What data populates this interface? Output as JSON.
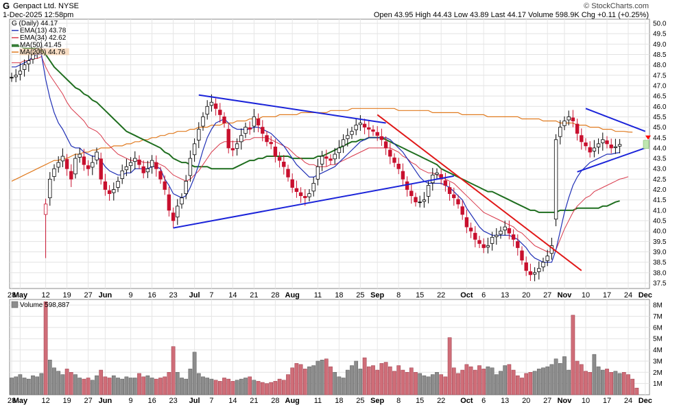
{
  "header": {
    "symbol": "G",
    "company": "Genpact Ltd.  NYSE",
    "date_time": "1-Dec-2025 12:58pm",
    "copyright": "© StockCharts.com",
    "open_label": "Open",
    "open": "43.95",
    "high_label": "High",
    "high": "44.43",
    "low_label": "Low",
    "low": "43.89",
    "last_label": "Last",
    "last": "44.17",
    "volume_label": "Volume",
    "volume": "598.9K",
    "chg_label": "Chg",
    "chg": "+0.11 (+0.25%)"
  },
  "colors": {
    "up": "#000000",
    "down": "#c8102e",
    "ema13": "#1f2fb5",
    "ema34": "#d8384a",
    "ma50": "#1f6e1f",
    "ma200": "#e07a1f",
    "trend_blue": "#1a23d9",
    "trend_red": "#e01818",
    "vol_up": "#8c8c8c",
    "vol_down": "#cf6d78"
  },
  "chart_data": [
    {
      "type": "candlestick",
      "title": "G (Daily) 44.17",
      "legend": [
        {
          "name": "G (Daily) 44.17",
          "color": "#000000"
        },
        {
          "name": "EMA(13) 43.78",
          "color": "#1f2fb5"
        },
        {
          "name": "EMA(34) 42.62",
          "color": "#d8384a"
        },
        {
          "name": "MA(50) 41.45",
          "color": "#1f6e1f"
        },
        {
          "name": "MA(200) 44.76",
          "color": "#e07a1f"
        }
      ],
      "legend_position": "top-left",
      "ylim": [
        37.5,
        50.0
      ],
      "y_ticks": [
        "50.0",
        "49.5",
        "49.0",
        "48.5",
        "48.0",
        "47.5",
        "47.0",
        "46.5",
        "46.0",
        "45.5",
        "45.0",
        "44.5",
        "44.0",
        "43.5",
        "43.0",
        "42.5",
        "42.0",
        "41.5",
        "41.0",
        "40.5",
        "40.0",
        "39.5",
        "39.0",
        "38.5",
        "38.0",
        "37.5"
      ],
      "x_labels": [
        {
          "i": 0,
          "label": "28"
        },
        {
          "i": 2,
          "label": "May"
        },
        {
          "i": 8,
          "label": "12"
        },
        {
          "i": 13,
          "label": "19"
        },
        {
          "i": 18,
          "label": "27"
        },
        {
          "i": 22,
          "label": "Jun"
        },
        {
          "i": 28,
          "label": "9"
        },
        {
          "i": 33,
          "label": "16"
        },
        {
          "i": 38,
          "label": "23"
        },
        {
          "i": 43,
          "label": "Jul"
        },
        {
          "i": 47,
          "label": "7"
        },
        {
          "i": 52,
          "label": "14"
        },
        {
          "i": 57,
          "label": "21"
        },
        {
          "i": 62,
          "label": "28"
        },
        {
          "i": 66,
          "label": "Aug"
        },
        {
          "i": 72,
          "label": "11"
        },
        {
          "i": 77,
          "label": "18"
        },
        {
          "i": 82,
          "label": "25"
        },
        {
          "i": 86,
          "label": "Sep"
        },
        {
          "i": 91,
          "label": "8"
        },
        {
          "i": 96,
          "label": "15"
        },
        {
          "i": 101,
          "label": "22"
        },
        {
          "i": 107,
          "label": "Oct"
        },
        {
          "i": 111,
          "label": "6"
        },
        {
          "i": 116,
          "label": "13"
        },
        {
          "i": 121,
          "label": "20"
        },
        {
          "i": 126,
          "label": "27"
        },
        {
          "i": 130,
          "label": "Nov"
        },
        {
          "i": 135,
          "label": "10"
        },
        {
          "i": 140,
          "label": "17"
        },
        {
          "i": 145,
          "label": "24"
        },
        {
          "i": 149,
          "label": "Dec"
        }
      ],
      "bold_x_labels": [
        "May",
        "Jun",
        "Jul",
        "Aug",
        "Sep",
        "Oct",
        "Nov",
        "Dec"
      ],
      "close": [
        47.4,
        47.5,
        47.7,
        48.0,
        48.2,
        48.5,
        48.8,
        48.9,
        41.3,
        42.5,
        43.0,
        43.3,
        43.6,
        43.0,
        42.5,
        43.5,
        43.7,
        43.2,
        43.0,
        43.3,
        43.8,
        42.5,
        42.0,
        41.8,
        42.0,
        42.4,
        42.9,
        43.1,
        43.3,
        43.5,
        43.2,
        42.8,
        43.0,
        43.4,
        43.0,
        42.5,
        42.0,
        41.0,
        40.5,
        41.2,
        41.6,
        42.4,
        43.5,
        44.2,
        44.9,
        45.5,
        46.0,
        46.2,
        45.9,
        45.6,
        45.2,
        44.0,
        43.9,
        44.2,
        44.6,
        45.0,
        44.9,
        45.5,
        45.1,
        44.7,
        44.3,
        44.2,
        43.6,
        43.4,
        43.1,
        42.6,
        42.1,
        41.9,
        41.7,
        41.6,
        41.8,
        42.3,
        43.1,
        43.6,
        43.5,
        43.4,
        43.7,
        44.0,
        44.4,
        44.6,
        44.8,
        45.1,
        45.2,
        45.0,
        44.9,
        44.8,
        44.6,
        44.4,
        44.0,
        43.6,
        43.3,
        43.0,
        42.5,
        42.0,
        41.7,
        41.4,
        41.4,
        41.5,
        42.2,
        42.7,
        42.8,
        42.5,
        42.2,
        41.8,
        41.6,
        41.3,
        40.8,
        40.2,
        40.0,
        39.6,
        39.4,
        39.2,
        39.3,
        39.7,
        39.8,
        40.0,
        40.2,
        39.9,
        39.6,
        39.2,
        38.6,
        38.1,
        37.9,
        38.0,
        38.2,
        38.5,
        38.8,
        39.3,
        44.4,
        45.0,
        45.3,
        45.5,
        45.3,
        44.7,
        44.3,
        44.1,
        43.8,
        44.0,
        44.2,
        44.4,
        44.2,
        44.0,
        44.06,
        44.17
      ],
      "ema13": [
        47.9,
        47.9,
        48.0,
        48.1,
        48.2,
        48.4,
        48.5,
        48.5,
        47.3,
        46.4,
        45.7,
        45.2,
        44.9,
        44.5,
        44.1,
        44.0,
        44.0,
        43.8,
        43.7,
        43.6,
        43.6,
        43.4,
        43.1,
        42.9,
        42.8,
        42.7,
        42.7,
        42.8,
        42.8,
        43.0,
        43.0,
        43.0,
        43.0,
        43.1,
        43.1,
        43.0,
        42.5,
        42.2,
        41.8,
        41.7,
        41.6,
        41.7,
        42.1,
        42.6,
        43.2,
        43.9,
        44.5,
        44.9,
        45.2,
        45.3,
        45.4,
        45.2,
        45.0,
        44.9,
        44.9,
        44.9,
        44.9,
        45.0,
        45.0,
        44.9,
        44.8,
        44.7,
        44.5,
        44.3,
        44.1,
        43.8,
        43.5,
        43.2,
        43.0,
        42.8,
        42.6,
        42.6,
        42.7,
        42.8,
        42.9,
        43.0,
        43.1,
        43.3,
        43.5,
        43.7,
        43.9,
        44.1,
        44.3,
        44.4,
        44.5,
        44.5,
        44.5,
        44.5,
        44.5,
        44.4,
        44.2,
        44.0,
        43.8,
        43.5,
        43.2,
        42.9,
        42.6,
        42.4,
        42.3,
        42.3,
        42.3,
        42.3,
        42.2,
        42.1,
        41.9,
        41.7,
        41.5,
        41.1,
        40.8,
        40.5,
        40.2,
        40.0,
        39.9,
        39.8,
        39.8,
        39.8,
        39.8,
        39.8,
        39.7,
        39.6,
        39.4,
        39.2,
        38.9,
        38.7,
        38.6,
        38.5,
        38.5,
        38.5,
        39.1,
        40.0,
        40.9,
        41.6,
        42.2,
        42.6,
        42.9,
        43.1,
        43.3,
        43.4,
        43.5,
        43.6,
        43.7,
        43.7,
        43.75,
        43.78
      ],
      "ema34": [
        48.1,
        48.1,
        48.1,
        48.2,
        48.2,
        48.3,
        48.3,
        48.4,
        47.9,
        47.5,
        47.2,
        46.9,
        46.6,
        46.2,
        45.9,
        45.7,
        45.5,
        45.3,
        45.0,
        44.9,
        44.8,
        44.6,
        44.3,
        44.1,
        43.9,
        43.7,
        43.6,
        43.5,
        43.4,
        43.4,
        43.4,
        43.3,
        43.3,
        43.3,
        43.3,
        43.2,
        43.1,
        42.9,
        42.7,
        42.6,
        42.5,
        42.4,
        42.5,
        42.7,
        42.9,
        43.2,
        43.5,
        43.8,
        44.0,
        44.2,
        44.3,
        44.3,
        44.3,
        44.3,
        44.3,
        44.4,
        44.4,
        44.5,
        44.5,
        44.5,
        44.5,
        44.4,
        44.3,
        44.2,
        44.1,
        44.0,
        43.8,
        43.6,
        43.5,
        43.3,
        43.2,
        43.2,
        43.1,
        43.1,
        43.1,
        43.2,
        43.2,
        43.3,
        43.4,
        43.5,
        43.6,
        43.7,
        43.8,
        43.9,
        44.0,
        44.0,
        44.0,
        44.0,
        44.0,
        44.0,
        43.9,
        43.8,
        43.6,
        43.5,
        43.3,
        43.2,
        43.0,
        42.9,
        42.8,
        42.8,
        42.7,
        42.6,
        42.5,
        42.4,
        42.3,
        42.1,
        41.9,
        41.7,
        41.5,
        41.3,
        41.1,
        40.9,
        40.8,
        40.7,
        40.6,
        40.5,
        40.4,
        40.3,
        40.2,
        40.0,
        39.9,
        39.7,
        39.5,
        39.3,
        39.2,
        39.1,
        39.0,
        39.0,
        39.1,
        39.6,
        40.1,
        40.5,
        40.9,
        41.2,
        41.4,
        41.6,
        41.7,
        41.9,
        42.0,
        42.1,
        42.2,
        42.3,
        42.4,
        42.5,
        42.55,
        42.62
      ],
      "ma50": [
        48.9,
        48.9,
        48.9,
        48.8,
        48.8,
        48.8,
        48.8,
        48.7,
        48.5,
        48.2,
        47.9,
        47.7,
        47.5,
        47.3,
        47.1,
        46.9,
        46.8,
        46.6,
        46.5,
        46.3,
        46.2,
        46.0,
        45.8,
        45.6,
        45.4,
        45.2,
        45.0,
        44.8,
        44.7,
        44.6,
        44.5,
        44.4,
        44.3,
        44.2,
        44.1,
        44.0,
        43.8,
        43.7,
        43.5,
        43.4,
        43.3,
        43.3,
        43.2,
        43.1,
        43.1,
        43.1,
        43.1,
        43.0,
        43.0,
        43.0,
        43.0,
        43.0,
        43.0,
        43.1,
        43.2,
        43.3,
        43.4,
        43.4,
        43.5,
        43.5,
        43.6,
        43.6,
        43.6,
        43.6,
        43.6,
        43.6,
        43.5,
        43.5,
        43.5,
        43.5,
        43.5,
        43.5,
        43.6,
        43.6,
        43.7,
        43.8,
        43.9,
        44.0,
        44.1,
        44.2,
        44.3,
        44.3,
        44.4,
        44.4,
        44.5,
        44.5,
        44.5,
        44.5,
        44.4,
        44.3,
        44.2,
        44.1,
        44.0,
        43.9,
        43.8,
        43.7,
        43.6,
        43.5,
        43.4,
        43.3,
        43.2,
        43.0,
        42.9,
        42.8,
        42.7,
        42.6,
        42.5,
        42.4,
        42.3,
        42.2,
        42.1,
        42.0,
        41.9,
        41.9,
        41.8,
        41.7,
        41.6,
        41.5,
        41.4,
        41.3,
        41.2,
        41.1,
        41.0,
        41.0,
        40.9,
        40.9,
        40.9,
        40.9,
        40.9,
        41.0,
        41.0,
        41.0,
        41.0,
        41.1,
        41.1,
        41.1,
        41.1,
        41.1,
        41.1,
        41.2,
        41.2,
        41.3,
        41.4,
        41.45
      ],
      "ma200": [
        42.4,
        42.5,
        42.6,
        42.7,
        42.8,
        42.9,
        43.0,
        43.1,
        43.2,
        43.3,
        43.4,
        43.4,
        43.5,
        43.5,
        43.6,
        43.7,
        43.7,
        43.8,
        43.8,
        43.9,
        43.9,
        44.0,
        44.0,
        44.0,
        44.1,
        44.1,
        44.1,
        44.2,
        44.2,
        44.3,
        44.3,
        44.4,
        44.4,
        44.5,
        44.5,
        44.6,
        44.6,
        44.7,
        44.7,
        44.8,
        44.8,
        44.8,
        44.9,
        44.9,
        45.0,
        45.0,
        45.0,
        45.1,
        45.1,
        45.1,
        45.2,
        45.2,
        45.2,
        45.3,
        45.3,
        45.3,
        45.4,
        45.4,
        45.4,
        45.5,
        45.5,
        45.5,
        45.5,
        45.6,
        45.6,
        45.6,
        45.6,
        45.6,
        45.7,
        45.7,
        45.7,
        45.7,
        45.7,
        45.7,
        45.7,
        45.8,
        45.8,
        45.8,
        45.8,
        45.8,
        45.9,
        45.9,
        45.9,
        45.9,
        45.9,
        45.9,
        45.9,
        45.9,
        45.9,
        45.9,
        45.9,
        45.8,
        45.8,
        45.8,
        45.8,
        45.8,
        45.8,
        45.8,
        45.8,
        45.7,
        45.7,
        45.7,
        45.7,
        45.7,
        45.7,
        45.7,
        45.6,
        45.6,
        45.6,
        45.6,
        45.6,
        45.6,
        45.5,
        45.5,
        45.5,
        45.5,
        45.5,
        45.5,
        45.5,
        45.5,
        45.4,
        45.4,
        45.4,
        45.4,
        45.4,
        45.3,
        45.3,
        45.3,
        45.3,
        45.2,
        45.2,
        45.2,
        45.2,
        45.1,
        45.1,
        45.1,
        45.0,
        45.0,
        45.0,
        44.9,
        44.9,
        44.9,
        44.8,
        44.8,
        44.8,
        44.77,
        44.76
      ],
      "trendlines": [
        {
          "color": "blue",
          "from": [
            38,
            40.15
          ],
          "to": [
            104,
            42.65
          ]
        },
        {
          "color": "blue",
          "from": [
            44,
            46.55
          ],
          "to": [
            88,
            45.2
          ]
        },
        {
          "color": "red",
          "from": [
            86,
            45.6
          ],
          "to": [
            134,
            38.1
          ]
        },
        {
          "color": "blue",
          "from": [
            133,
            42.85
          ],
          "to": [
            149,
            44.0
          ]
        },
        {
          "color": "blue",
          "from": [
            135,
            45.9
          ],
          "to": [
            149,
            44.8
          ]
        }
      ]
    },
    {
      "type": "bar",
      "title": "Volume 598,887",
      "ylim": [
        0,
        8500000
      ],
      "y_ticks": [
        "8M",
        "7M",
        "6M",
        "5M",
        "4M",
        "3M",
        "2M",
        "1M"
      ],
      "values": [
        1.5,
        1.6,
        1.8,
        1.5,
        1.4,
        1.7,
        1.6,
        1.9,
        8.3,
        3.1,
        2.4,
        2.1,
        1.8,
        2.3,
        2.0,
        1.8,
        1.5,
        1.4,
        1.5,
        1.3,
        1.7,
        2.2,
        1.6,
        1.5,
        1.7,
        1.5,
        1.4,
        1.6,
        1.5,
        1.5,
        1.9,
        1.6,
        1.7,
        1.5,
        1.4,
        1.5,
        1.6,
        2.0,
        4.3,
        2.0,
        1.5,
        1.4,
        2.3,
        3.8,
        1.9,
        1.6,
        1.5,
        1.4,
        1.3,
        1.2,
        1.5,
        1.4,
        1.2,
        1.3,
        1.4,
        1.5,
        1.6,
        1.3,
        1.2,
        1.1,
        1.0,
        1.1,
        1.2,
        1.4,
        1.3,
        1.8,
        2.4,
        2.8,
        2.7,
        2.3,
        2.5,
        2.6,
        3.0,
        3.1,
        3.2,
        2.5,
        2.0,
        1.6,
        1.5,
        2.2,
        2.6,
        3.0,
        2.3,
        3.3,
        2.5,
        2.6,
        2.2,
        2.8,
        2.9,
        2.5,
        2.1,
        2.6,
        2.2,
        2.0,
        2.4,
        2.0,
        1.9,
        1.7,
        1.6,
        1.8,
        2.0,
        1.8,
        1.6,
        5.1,
        2.4,
        1.9,
        2.2,
        2.7,
        2.5,
        2.2,
        2.6,
        2.3,
        2.5,
        2.4,
        1.8,
        2.1,
        2.6,
        2.7,
        2.2,
        1.7,
        1.5,
        1.9,
        2.0,
        2.1,
        2.3,
        2.4,
        2.5,
        2.7,
        3.2,
        2.8,
        3.4,
        2.2,
        7.1,
        3.0,
        2.7,
        2.1,
        2.0,
        3.6,
        2.5,
        2.2,
        2.3,
        2.0,
        2.1,
        1.9,
        2.0,
        1.8,
        1.4,
        0.6
      ],
      "values_unit": "millions"
    }
  ]
}
